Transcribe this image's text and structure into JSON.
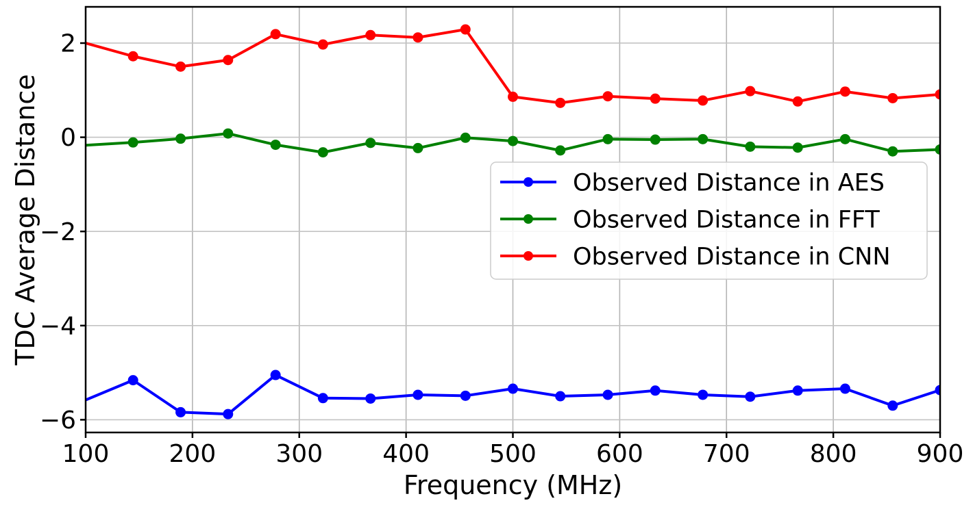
{
  "chart_data": {
    "type": "line",
    "title": "",
    "xlabel": "Frequency (MHz)",
    "ylabel": "TDC Average Distance",
    "x": [
      100,
      144.4,
      188.9,
      233.3,
      277.8,
      322.2,
      366.7,
      411.1,
      455.6,
      500,
      544.4,
      588.9,
      633.3,
      677.8,
      722.2,
      766.7,
      811.1,
      855.6,
      900
    ],
    "series": [
      {
        "name": "Observed  Distance in AES",
        "color": "#0000ff",
        "values": [
          -5.58,
          -5.16,
          -5.84,
          -5.88,
          -5.05,
          -5.54,
          -5.55,
          -5.47,
          -5.49,
          -5.34,
          -5.5,
          -5.47,
          -5.38,
          -5.47,
          -5.51,
          -5.38,
          -5.34,
          -5.7,
          -5.37
        ]
      },
      {
        "name": "Observed  Distance in FFT",
        "color": "#008000",
        "values": [
          -0.17,
          -0.11,
          -0.03,
          0.08,
          -0.16,
          -0.32,
          -0.12,
          -0.23,
          -0.01,
          -0.08,
          -0.28,
          -0.04,
          -0.05,
          -0.04,
          -0.2,
          -0.22,
          -0.04,
          -0.3,
          -0.26
        ]
      },
      {
        "name": "Observed  Distance in CNN",
        "color": "#ff0000",
        "values": [
          2.0,
          1.72,
          1.5,
          1.64,
          2.19,
          1.97,
          2.17,
          2.12,
          2.29,
          0.86,
          0.73,
          0.87,
          0.82,
          0.78,
          0.98,
          0.76,
          0.97,
          0.83,
          0.91
        ]
      }
    ],
    "xlim": [
      100,
      900
    ],
    "ylim": [
      -6.27,
      2.77
    ],
    "x_ticks": [
      100,
      200,
      300,
      400,
      500,
      600,
      700,
      800,
      900
    ],
    "x_tick_labels": [
      "100",
      "200",
      "300",
      "400",
      "500",
      "600",
      "700",
      "800",
      "900"
    ],
    "y_ticks": [
      2,
      0,
      -2,
      -4,
      -6
    ],
    "y_tick_labels": [
      "2",
      "0",
      "−2",
      "−4",
      "−6"
    ],
    "grid": true,
    "legend": {
      "position": "center-right",
      "entries": [
        "Observed  Distance in AES",
        "Observed  Distance in FFT",
        "Observed  Distance in CNN"
      ]
    }
  }
}
